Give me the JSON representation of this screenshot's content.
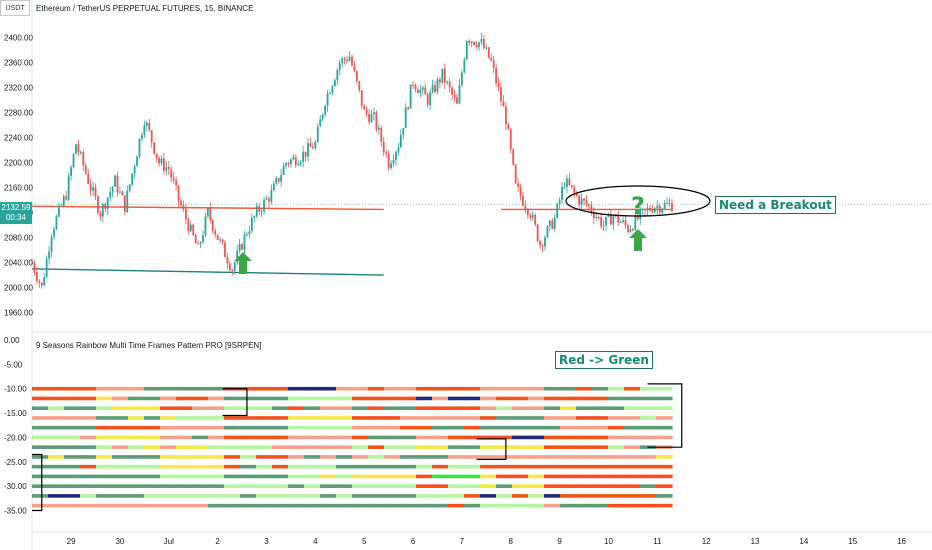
{
  "header": {
    "symbol_logo": "USDT",
    "symbol_title": "Ethereum / TetherUS PERPETUAL FUTURES, 15, BINANCE",
    "indicator_title": "9 Seasons Rainbow Multi Time Frames Pattern PRO [9SRPEN]"
  },
  "price_tag": {
    "price": "2132.59",
    "countdown": "00:34",
    "color": "#26a69a"
  },
  "annotations": {
    "breakout_text": "Need a Breakout",
    "question_mark": "?",
    "red_green_text": "Red -> Green",
    "arrow_color": "#3aa84a",
    "text_color": "#168a73"
  },
  "chart_data": [
    {
      "type": "line",
      "name": "price",
      "x_ticks": [
        "29",
        "30",
        "Jul",
        "2",
        "3",
        "4",
        "5",
        "6",
        "7",
        "8",
        "9",
        "10",
        "11",
        "12",
        "13",
        "14",
        "15",
        "16"
      ],
      "y_ticks": [
        "2400.00",
        "2360.00",
        "2320.00",
        "2280.00",
        "2240.00",
        "2200.00",
        "2160.00",
        "2120.00",
        "2080.00",
        "2040.00",
        "2000.00",
        "1960.00"
      ],
      "ylim": [
        1945,
        2415
      ],
      "x_range": [
        28.2,
        16.5
      ],
      "x": [
        28.2,
        28.4,
        28.6,
        28.9,
        29.1,
        29.4,
        29.6,
        29.9,
        30.1,
        30.5,
        30.8,
        31.0,
        31.2,
        31.4,
        31.6,
        31.8,
        32.0,
        32.3,
        32.6,
        32.8,
        33.1,
        33.4,
        33.7,
        34.0,
        34.2,
        34.5,
        34.7,
        35.0,
        35.2,
        35.5,
        35.7,
        36.0,
        36.3,
        36.6,
        36.9,
        37.1,
        37.4,
        37.6,
        37.9,
        38.1,
        38.4,
        38.6,
        38.9,
        39.1,
        39.4,
        39.6,
        39.9,
        40.1,
        40.4,
        40.6,
        40.9,
        41.3
      ],
      "y": [
        2040,
        2000,
        2090,
        2150,
        2230,
        2160,
        2120,
        2170,
        2130,
        2270,
        2200,
        2190,
        2140,
        2100,
        2060,
        2120,
        2080,
        2030,
        2090,
        2120,
        2150,
        2200,
        2210,
        2230,
        2300,
        2360,
        2370,
        2280,
        2270,
        2200,
        2230,
        2330,
        2300,
        2340,
        2290,
        2400,
        2390,
        2360,
        2270,
        2160,
        2120,
        2070,
        2110,
        2170,
        2140,
        2130,
        2100,
        2115,
        2095,
        2110,
        2130,
        2132.59
      ],
      "last_price": 2132.59,
      "hlines": [
        {
          "from_x": 28.2,
          "to_x": 35.4,
          "y_start": 2130,
          "y_end": 2125,
          "color": "#f15a3a"
        },
        {
          "from_x": 28.2,
          "to_x": 35.4,
          "y_start": 2030,
          "y_end": 2020,
          "color": "#1f7f7a"
        },
        {
          "from_x": 37.8,
          "to_x": 41.3,
          "y_start": 2125,
          "y_end": 2125,
          "color": "#f15a3a"
        }
      ]
    },
    {
      "type": "heatmap",
      "name": "9 Seasons Rainbow Multi Time Frames",
      "y_ticks": [
        "0.00",
        "-5.00",
        "-10.00",
        "-15.00",
        "-20.00",
        "-25.00",
        "-30.00",
        "-35.00"
      ],
      "ylim": [
        -39,
        0
      ],
      "rows": [
        {
          "y": -10,
          "from_x": 28.2,
          "to_x": 41.3,
          "pattern": [
            "red",
            "salmon",
            "darkgreen",
            "red",
            "navy",
            "salmon",
            "red",
            "salmon",
            "darkgreen",
            "lightgreen"
          ]
        },
        {
          "y": -12,
          "from_x": 28.2,
          "to_x": 41.3,
          "pattern": [
            "red",
            "yellow",
            "salmon",
            "darkgreen",
            "lightgreen",
            "red",
            "navy",
            "salmon",
            "red",
            "darkgreen"
          ]
        },
        {
          "y": -14,
          "from_x": 28.2,
          "to_x": 41.3,
          "pattern": [
            "darkgreen",
            "yellow",
            "red",
            "lightgreen",
            "salmon",
            "darkgreen",
            "red",
            "salmon",
            "darkgreen",
            "lightgreen"
          ]
        },
        {
          "y": -16,
          "from_x": 28.2,
          "to_x": 41.3,
          "pattern": [
            "salmon",
            "darkgreen",
            "lightgreen",
            "red",
            "yellow",
            "red",
            "salmon",
            "darkgreen",
            "red",
            "lightgreen"
          ]
        },
        {
          "y": -18,
          "from_x": 28.2,
          "to_x": 41.3,
          "pattern": [
            "darkgreen",
            "red",
            "salmon",
            "darkgreen",
            "lightgreen",
            "salmon",
            "red",
            "darkgreen",
            "salmon",
            "darkgreen"
          ]
        },
        {
          "y": -20,
          "from_x": 28.2,
          "to_x": 41.3,
          "pattern": [
            "lightgreen",
            "yellow",
            "salmon",
            "red",
            "salmon",
            "darkgreen",
            "red",
            "navy",
            "red",
            "salmon"
          ]
        },
        {
          "y": -22,
          "from_x": 28.2,
          "to_x": 41.3,
          "pattern": [
            "darkgreen",
            "lightgreen",
            "yellow",
            "lightgreen",
            "salmon",
            "lightgreen",
            "darkgreen",
            "yellow",
            "red",
            "salmon"
          ]
        },
        {
          "y": -24,
          "from_x": 28.2,
          "to_x": 41.3,
          "pattern": [
            "darkgreen",
            "darkgreen",
            "yellow",
            "red",
            "darkgreen",
            "lightgreen",
            "darkgreen",
            "salmon",
            "salmon",
            "salmon"
          ]
        },
        {
          "y": -26,
          "from_x": 28.2,
          "to_x": 41.3,
          "pattern": [
            "darkgreen",
            "lightgreen",
            "yellow",
            "red",
            "lightgreen",
            "darkgreen",
            "lightgreen",
            "red",
            "red",
            "red"
          ]
        },
        {
          "y": -28,
          "from_x": 28.2,
          "to_x": 41.3,
          "pattern": [
            "darkgreen",
            "darkgreen",
            "lightgreen",
            "darkgreen",
            "lightgreen",
            "yellow",
            "lime",
            "yellow",
            "red",
            "red"
          ]
        },
        {
          "y": -30,
          "from_x": 28.2,
          "to_x": 41.3,
          "pattern": [
            "darkgreen",
            "darkgreen",
            "darkgreen",
            "lightgreen",
            "darkgreen",
            "lightgreen",
            "lightgreen",
            "yellow",
            "red",
            "red"
          ]
        },
        {
          "y": -32,
          "from_x": 28.2,
          "to_x": 41.3,
          "pattern": [
            "navy",
            "darkgreen",
            "lightgreen",
            "lightgreen",
            "lightgreen",
            "darkgreen",
            "lightgreen",
            "lightgreen",
            "red",
            "red"
          ]
        },
        {
          "y": -34,
          "from_x": 28.2,
          "to_x": 41.3,
          "pattern": [
            "salmon",
            "salmon",
            "salmon",
            "darkgreen",
            "darkgreen",
            "darkgreen",
            "darkgreen",
            "lightgreen",
            "darkgreen",
            "red"
          ]
        }
      ],
      "colors": {
        "red": "#f4511e",
        "salmon": "#f7a08a",
        "darkgreen": "#5c9c77",
        "lightgreen": "#b4f5a0",
        "lime": "#39e639",
        "yellow": "#f5e84a",
        "navy": "#1e2a78"
      }
    }
  ]
}
